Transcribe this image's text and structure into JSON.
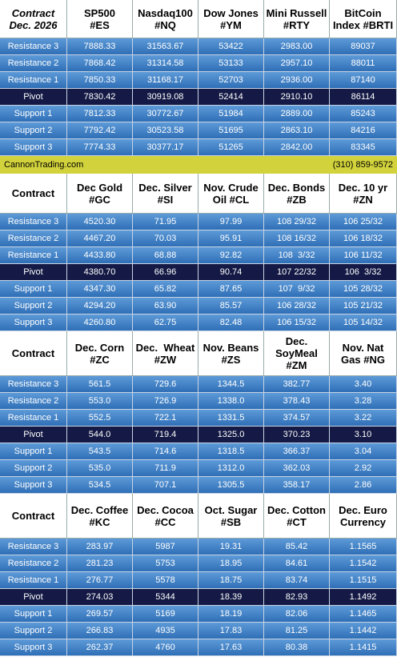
{
  "sections": [
    {
      "header": [
        [
          "Contract",
          "Dec. 2026"
        ],
        [
          "SP500",
          "#ES"
        ],
        [
          "Nasdaq100",
          "#NQ"
        ],
        [
          "Dow Jones",
          "#YM"
        ],
        [
          "Mini Russell",
          "#RTY"
        ],
        [
          "BitCoin",
          "Index #BRTI"
        ]
      ],
      "rows": [
        {
          "label": "Resistance 3",
          "values": [
            "7888.33",
            "31563.67",
            "53422",
            "2983.00",
            "89037"
          ]
        },
        {
          "label": "Resistance 2",
          "values": [
            "7868.42",
            "31314.58",
            "53133",
            "2957.10",
            "88011"
          ]
        },
        {
          "label": "Resistance 1",
          "values": [
            "7850.33",
            "31168.17",
            "52703",
            "2936.00",
            "87140"
          ]
        },
        {
          "label": "Pivot",
          "values": [
            "7830.42",
            "30919.08",
            "52414",
            "2910.10",
            "86114"
          ]
        },
        {
          "label": "Support 1",
          "values": [
            "7812.33",
            "30772.67",
            "51984",
            "2889.00",
            "85243"
          ]
        },
        {
          "label": "Support 2",
          "values": [
            "7792.42",
            "30523.58",
            "51695",
            "2863.10",
            "84216"
          ]
        },
        {
          "label": "Support 3",
          "values": [
            "7774.33",
            "30377.17",
            "51265",
            "2842.00",
            "83345"
          ]
        }
      ]
    },
    {
      "header": [
        [
          "Contract"
        ],
        [
          "Dec Gold",
          "#GC"
        ],
        [
          "Dec. Silver",
          "#SI"
        ],
        [
          "Nov. Crude",
          "Oil #CL"
        ],
        [
          "Dec. Bonds",
          "#ZB"
        ],
        [
          "Dec. 10 yr",
          "#ZN"
        ]
      ],
      "rows": [
        {
          "label": "Resistance 3",
          "values": [
            "4520.30",
            "71.95",
            "97.99",
            "108 29/32",
            "106 25/32"
          ]
        },
        {
          "label": "Resistance 2",
          "values": [
            "4467.20",
            "70.03",
            "95.91",
            "108 16/32",
            "106 18/32"
          ]
        },
        {
          "label": "Resistance 1",
          "values": [
            "4433.80",
            "68.88",
            "92.82",
            "108  3/32",
            "106 11/32"
          ]
        },
        {
          "label": "Pivot",
          "values": [
            "4380.70",
            "66.96",
            "90.74",
            "107 22/32",
            "106  3/32"
          ]
        },
        {
          "label": "Support 1",
          "values": [
            "4347.30",
            "65.82",
            "87.65",
            "107  9/32",
            "105 28/32"
          ]
        },
        {
          "label": "Support 2",
          "values": [
            "4294.20",
            "63.90",
            "85.57",
            "106 28/32",
            "105 21/32"
          ]
        },
        {
          "label": "Support 3",
          "values": [
            "4260.80",
            "62.75",
            "82.48",
            "106 15/32",
            "105 14/32"
          ]
        }
      ]
    },
    {
      "header": [
        [
          "Contract"
        ],
        [
          "Dec. Corn",
          "#ZC"
        ],
        [
          "Dec.  Wheat",
          "#ZW"
        ],
        [
          "Nov. Beans",
          "#ZS"
        ],
        [
          "Dec.",
          "SoyMeal",
          "#ZM"
        ],
        [
          "Nov. Nat",
          "Gas #NG"
        ]
      ],
      "rows": [
        {
          "label": "Resistance 3",
          "values": [
            "561.5",
            "729.6",
            "1344.5",
            "382.77",
            "3.40"
          ]
        },
        {
          "label": "Resistance 2",
          "values": [
            "553.0",
            "726.9",
            "1338.0",
            "378.43",
            "3.28"
          ]
        },
        {
          "label": "Resistance 1",
          "values": [
            "552.5",
            "722.1",
            "1331.5",
            "374.57",
            "3.22"
          ]
        },
        {
          "label": "Pivot",
          "values": [
            "544.0",
            "719.4",
            "1325.0",
            "370.23",
            "3.10"
          ]
        },
        {
          "label": "Support 1",
          "values": [
            "543.5",
            "714.6",
            "1318.5",
            "366.37",
            "3.04"
          ]
        },
        {
          "label": "Support 2",
          "values": [
            "535.0",
            "711.9",
            "1312.0",
            "362.03",
            "2.92"
          ]
        },
        {
          "label": "Support 3",
          "values": [
            "534.5",
            "707.1",
            "1305.5",
            "358.17",
            "2.86"
          ]
        }
      ]
    },
    {
      "header": [
        [
          "Contract"
        ],
        [
          "Dec. Coffee",
          "#KC"
        ],
        [
          "Dec. Cocoa",
          "#CC"
        ],
        [
          "Oct. Sugar",
          "#SB"
        ],
        [
          "Dec. Cotton",
          "#CT"
        ],
        [
          "Dec. Euro",
          "Currency"
        ]
      ],
      "rows": [
        {
          "label": "Resistance 3",
          "values": [
            "283.97",
            "5987",
            "19.31",
            "85.42",
            "1.1565"
          ]
        },
        {
          "label": "Resistance 2",
          "values": [
            "281.23",
            "5753",
            "18.95",
            "84.61",
            "1.1542"
          ]
        },
        {
          "label": "Resistance 1",
          "values": [
            "276.77",
            "5578",
            "18.75",
            "83.74",
            "1.1515"
          ]
        },
        {
          "label": "Pivot",
          "values": [
            "274.03",
            "5344",
            "18.39",
            "82.93",
            "1.1492"
          ]
        },
        {
          "label": "Support 1",
          "values": [
            "269.57",
            "5169",
            "18.19",
            "82.06",
            "1.1465"
          ]
        },
        {
          "label": "Support 2",
          "values": [
            "266.83",
            "4935",
            "17.83",
            "81.25",
            "1.1442"
          ]
        },
        {
          "label": "Support 3",
          "values": [
            "262.37",
            "4760",
            "17.63",
            "80.38",
            "1.1415"
          ]
        }
      ]
    }
  ],
  "banner": {
    "website": "CannonTrading.com",
    "phone": "(310) 859-9572"
  }
}
